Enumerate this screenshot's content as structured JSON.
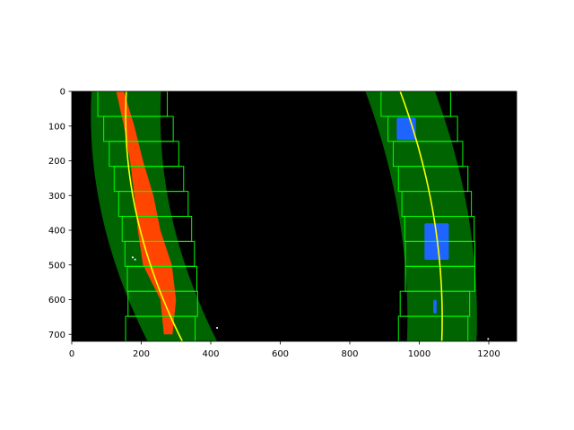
{
  "chart_data": {
    "type": "image",
    "xlim": [
      0,
      1280
    ],
    "ylim": [
      720,
      0
    ],
    "xticks": [
      0,
      200,
      400,
      600,
      800,
      1000,
      1200
    ],
    "yticks": [
      0,
      100,
      200,
      300,
      400,
      500,
      600,
      700
    ],
    "xtick_labels": [
      "0",
      "200",
      "400",
      "600",
      "800",
      "1000",
      "1200"
    ],
    "ytick_labels": [
      "0",
      "100",
      "200",
      "300",
      "400",
      "500",
      "600",
      "700"
    ],
    "colors": {
      "background": "#000000",
      "lane_band": "#006400",
      "window": "#00ff00",
      "left_pixels": "#ff4500",
      "right_pixels": "#1e64ff",
      "fit_line": "#ffff00",
      "noise": "#ffffff"
    },
    "lane_band_half_width": 100,
    "lanes": [
      {
        "name": "left",
        "fit": {
          "a": 0.000386,
          "b": -0.054,
          "c": 157
        },
        "windows": [
          {
            "y": [
              648,
              720
            ],
            "x": [
              155,
              355
            ]
          },
          {
            "y": [
              576,
              648
            ],
            "x": [
              162,
              362
            ]
          },
          {
            "y": [
              504,
              576
            ],
            "x": [
              160,
              360
            ]
          },
          {
            "y": [
              432,
              504
            ],
            "x": [
              153,
              353
            ]
          },
          {
            "y": [
              360,
              432
            ],
            "x": [
              145,
              345
            ]
          },
          {
            "y": [
              288,
              360
            ],
            "x": [
              135,
              335
            ]
          },
          {
            "y": [
              216,
              288
            ],
            "x": [
              122,
              322
            ]
          },
          {
            "y": [
              144,
              216
            ],
            "x": [
              108,
              308
            ]
          },
          {
            "y": [
              72,
              144
            ],
            "x": [
              92,
              292
            ]
          },
          {
            "y": [
              0,
              72
            ],
            "x": [
              75,
              275
            ]
          }
        ],
        "pixel_band": [
          {
            "y": 0,
            "x": [
              128,
              150
            ]
          },
          {
            "y": 100,
            "x": [
              150,
              180
            ]
          },
          {
            "y": 200,
            "x": [
              168,
              205
            ]
          },
          {
            "y": 300,
            "x": [
              180,
              235
            ]
          },
          {
            "y": 400,
            "x": [
              190,
              255
            ]
          },
          {
            "y": 500,
            "x": [
              205,
              288
            ]
          },
          {
            "y": 600,
            "x": [
              255,
              300
            ]
          },
          {
            "y": 700,
            "x": [
              265,
              290
            ]
          }
        ]
      },
      {
        "name": "right",
        "fit": {
          "a": -0.000283,
          "b": 0.37,
          "c": 945
        },
        "windows": [
          {
            "y": [
              648,
              720
            ],
            "x": [
              940,
              1140
            ]
          },
          {
            "y": [
              576,
              648
            ],
            "x": [
              945,
              1145
            ]
          },
          {
            "y": [
              504,
              576
            ],
            "x": [
              960,
              1160
            ]
          },
          {
            "y": [
              432,
              504
            ],
            "x": [
              960,
              1160
            ]
          },
          {
            "y": [
              360,
              432
            ],
            "x": [
              958,
              1158
            ]
          },
          {
            "y": [
              288,
              360
            ],
            "x": [
              950,
              1150
            ]
          },
          {
            "y": [
              216,
              288
            ],
            "x": [
              940,
              1140
            ]
          },
          {
            "y": [
              144,
              216
            ],
            "x": [
              925,
              1125
            ]
          },
          {
            "y": [
              72,
              144
            ],
            "x": [
              910,
              1110
            ]
          },
          {
            "y": [
              0,
              72
            ],
            "x": [
              890,
              1090
            ]
          }
        ],
        "pixel_blobs": [
          {
            "y": [
              75,
              140
            ],
            "x": [
              935,
              990
            ]
          },
          {
            "y": [
              380,
              485
            ],
            "x": [
              1015,
              1085
            ]
          },
          {
            "y": [
              600,
              640
            ],
            "x": [
              1040,
              1050
            ]
          }
        ]
      }
    ],
    "noise_points": [
      {
        "x": 175,
        "y": 478
      },
      {
        "x": 182,
        "y": 484
      },
      {
        "x": 418,
        "y": 681
      },
      {
        "x": 1198,
        "y": 713
      }
    ]
  }
}
